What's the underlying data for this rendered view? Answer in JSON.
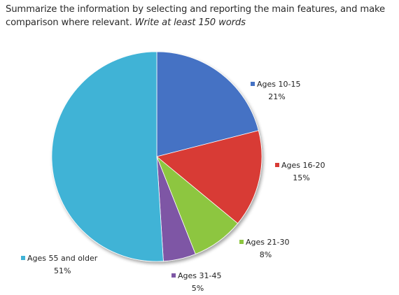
{
  "instructions": {
    "line1": "Summarize the information by selecting and reporting the main features, and make",
    "line2": "comparison where relevant.",
    "line2_italic": "Write at least 150 words"
  },
  "chart_data": {
    "type": "pie",
    "categories": [
      "Ages 10-15",
      "Ages 16-20",
      "Ages 21-30",
      "Ages 31-45",
      "Ages 55 and older"
    ],
    "values": [
      21,
      15,
      8,
      5,
      51
    ],
    "value_labels": [
      "21%",
      "15%",
      "8%",
      "5%",
      "51%"
    ],
    "colors": [
      "#4472C4",
      "#D83B35",
      "#8DC63F",
      "#7E57A5",
      "#40B3D6"
    ],
    "legend": "inline-next-to-slices"
  }
}
